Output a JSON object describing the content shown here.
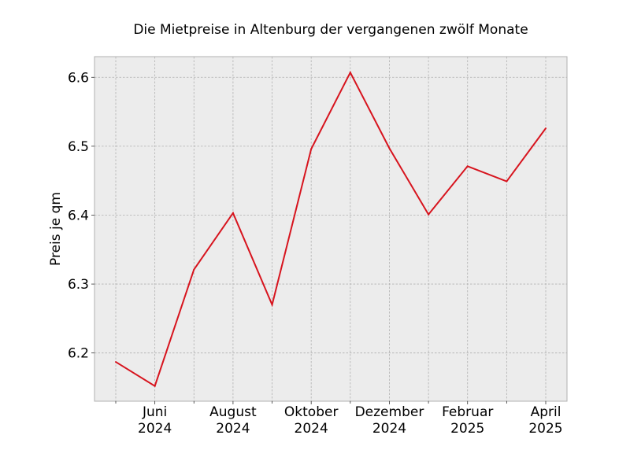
{
  "chart_data": {
    "type": "line",
    "title": "Die Mietpreise in Altenburg der vergangenen zwölf Monate",
    "xlabel": "",
    "ylabel": "Preis je qm",
    "x": [
      "2024-05",
      "2024-06",
      "2024-07",
      "2024-08",
      "2024-09",
      "2024-10",
      "2024-11",
      "2024-12",
      "2025-01",
      "2025-02",
      "2025-03",
      "2025-04"
    ],
    "x_tick_labels": [
      {
        "x": "2024-06",
        "line1": "Juni",
        "line2": "2024"
      },
      {
        "x": "2024-08",
        "line1": "August",
        "line2": "2024"
      },
      {
        "x": "2024-10",
        "line1": "Oktober",
        "line2": "2024"
      },
      {
        "x": "2024-12",
        "line1": "Dezember",
        "line2": "2024"
      },
      {
        "x": "2025-02",
        "line1": "Februar",
        "line2": "2025"
      },
      {
        "x": "2025-04",
        "line1": "April",
        "line2": "2025"
      }
    ],
    "series": [
      {
        "values": [
          6.187,
          6.152,
          6.321,
          6.403,
          6.27,
          6.496,
          6.607,
          6.497,
          6.401,
          6.471,
          6.449,
          6.526
        ],
        "color": "#d7141e"
      }
    ],
    "ylim": [
      6.13,
      6.63
    ],
    "y_ticks": [
      6.2,
      6.3,
      6.4,
      6.5,
      6.6
    ],
    "y_tick_labels": [
      "6.2",
      "6.3",
      "6.4",
      "6.5",
      "6.6"
    ],
    "grid": true,
    "background_color": "#ececec",
    "frame_color": "#b0b0b0"
  }
}
